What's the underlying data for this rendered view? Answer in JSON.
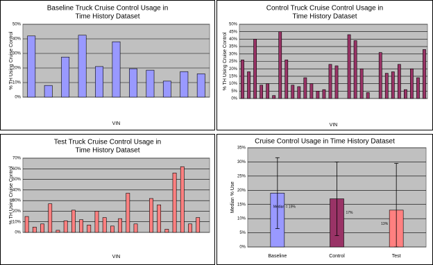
{
  "chart_data": [
    {
      "type": "bar",
      "title": [
        "Baseline Truck Cruise Control Usage in",
        "Time History Dataset"
      ],
      "x_label": "VIN",
      "y_label": "% TH Using Cruise Control",
      "categories": [
        null,
        null,
        null,
        null,
        null,
        null,
        null,
        null,
        null,
        null,
        null
      ],
      "values": [
        42,
        8,
        27.5,
        42.5,
        21,
        38,
        19.5,
        18.5,
        11,
        17.5,
        16
      ],
      "color": "#9999ff",
      "ylim": [
        0,
        50
      ],
      "yticks": [
        {
          "value": 0,
          "label": "0%"
        },
        {
          "value": 10,
          "label": "10%"
        },
        {
          "value": 20,
          "label": "20%"
        },
        {
          "value": 30,
          "label": "30%"
        },
        {
          "value": 40,
          "label": "40%"
        },
        {
          "value": 50,
          "label": "50%"
        }
      ],
      "grid": true
    },
    {
      "type": "bar",
      "title": [
        "Control Truck Cruise Control Usage in",
        "Time History Dataset"
      ],
      "x_label": "VIN",
      "y_label": "% TH Using Cruise Control",
      "categories": [
        null,
        null,
        null,
        null,
        null,
        null,
        null,
        null,
        null,
        null,
        null,
        null,
        null,
        null,
        null,
        null,
        null,
        null,
        null,
        null,
        null,
        null,
        null,
        null,
        null,
        null,
        null,
        null,
        null,
        null
      ],
      "values": [
        26,
        18,
        40,
        9,
        10,
        2,
        45,
        26,
        9,
        8,
        14,
        10,
        5,
        6,
        23,
        22,
        0,
        43,
        39,
        20,
        4,
        0,
        31,
        17,
        18,
        23,
        6,
        20,
        14,
        33
      ],
      "color": "#993366",
      "ylim": [
        0,
        50
      ],
      "yticks": [
        {
          "value": 0,
          "label": "0%"
        },
        {
          "value": 5,
          "label": "5%"
        },
        {
          "value": 10,
          "label": "10%"
        },
        {
          "value": 15,
          "label": "15%"
        },
        {
          "value": 20,
          "label": "20%"
        },
        {
          "value": 25,
          "label": "25%"
        },
        {
          "value": 30,
          "label": "30%"
        },
        {
          "value": 35,
          "label": "35%"
        },
        {
          "value": 40,
          "label": "40%"
        },
        {
          "value": 45,
          "label": "45%"
        },
        {
          "value": 50,
          "label": "50%"
        }
      ],
      "grid": true
    },
    {
      "type": "bar",
      "title": [
        "Test Truck Cruise Control Usage in",
        "Time History Dataset"
      ],
      "x_label": "VIN",
      "y_label": "% TH Using Cruise Control",
      "categories": [
        null,
        null,
        null,
        null,
        null,
        null,
        null,
        null,
        null,
        null,
        null,
        null,
        null,
        null,
        null,
        null,
        null,
        null,
        null,
        null,
        null,
        null,
        null,
        null
      ],
      "values": [
        15,
        5,
        8,
        27,
        2,
        11,
        21,
        12,
        7,
        20,
        14,
        6,
        13,
        37,
        8,
        0,
        32,
        26,
        3,
        56,
        62,
        8,
        14,
        0
      ],
      "color": "#ff8080",
      "ylim": [
        0,
        70
      ],
      "yticks": [
        {
          "value": 0,
          "label": "0%"
        },
        {
          "value": 10,
          "label": "10%"
        },
        {
          "value": 20,
          "label": "20%"
        },
        {
          "value": 30,
          "label": "30%"
        },
        {
          "value": 40,
          "label": "40%"
        },
        {
          "value": 50,
          "label": "50%"
        },
        {
          "value": 60,
          "label": "60%"
        },
        {
          "value": 70,
          "label": "70%"
        }
      ],
      "grid": true
    },
    {
      "type": "errorbar",
      "title": [
        "Cruise Control Usage in Time History Dataset"
      ],
      "y_label": "Median % Use",
      "categories": [
        "Baseline",
        "Control",
        "Test"
      ],
      "values": [
        19,
        17,
        13
      ],
      "value_labels": [
        "Median = 19%",
        "17%",
        "13%"
      ],
      "err_lo": [
        6.5,
        4,
        0
      ],
      "err_hi": [
        31.5,
        30,
        29.5
      ],
      "colors": [
        "#9999ff",
        "#993366",
        "#ff8080"
      ],
      "ylim": [
        0,
        35
      ],
      "yticks": [
        {
          "value": 0,
          "label": "0%"
        },
        {
          "value": 5,
          "label": "5%"
        },
        {
          "value": 10,
          "label": "10%"
        },
        {
          "value": 15,
          "label": "15%"
        },
        {
          "value": 20,
          "label": "20%"
        },
        {
          "value": 25,
          "label": "25%"
        },
        {
          "value": 30,
          "label": "30%"
        },
        {
          "value": 35,
          "label": "35%"
        }
      ],
      "grid": true
    }
  ]
}
